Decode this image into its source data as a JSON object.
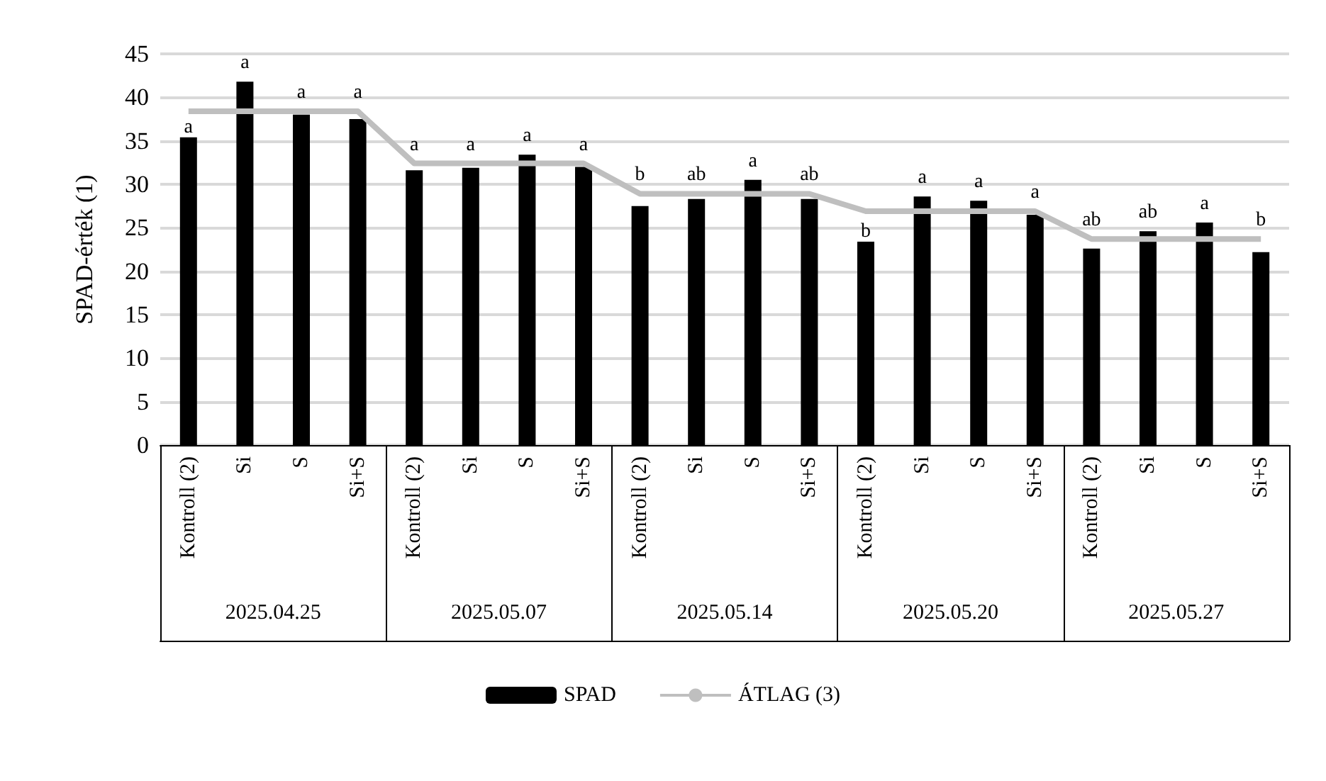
{
  "chart_data": {
    "type": "bar",
    "ylabel": "SPAD-érték (1)",
    "categories": [
      "Kontroll (2)",
      "Si",
      "S",
      "Si+S",
      "Kontroll (2)",
      "Si",
      "S",
      "Si+S",
      "Kontroll (2)",
      "Si",
      "S",
      "Si+S",
      "Kontroll (2)",
      "Si",
      "S",
      "Si+S",
      "Kontroll (2)",
      "Si",
      "S",
      "Si+S"
    ],
    "annotations": [
      "2025.04.25",
      "2025.05.07",
      "2025.05.14",
      "2025.05.20",
      "2025.05.27"
    ],
    "series": [
      {
        "name": "SPAD",
        "type": "bar",
        "color": "#000000",
        "values": [
          35.4,
          41.8,
          38,
          37.5,
          31.6,
          31.9,
          33.4,
          32,
          27.5,
          28.3,
          30.5,
          28.3,
          23.4,
          28.6,
          28.1,
          26.5,
          22.6,
          24.6,
          25.6,
          22.2
        ],
        "value_labels": [
          "a",
          "a",
          "a",
          "a",
          "a",
          "a",
          "a",
          "a",
          "b",
          "ab",
          "a",
          "ab",
          "b",
          "a",
          "a",
          "a",
          "ab",
          "ab",
          "a",
          "b"
        ]
      },
      {
        "name": "ÁTLAG (3)",
        "type": "line",
        "color": "#bfbfbf",
        "values": [
          38.4,
          38.4,
          38.4,
          38.4,
          32.4,
          32.4,
          32.4,
          32.4,
          28.9,
          28.9,
          28.9,
          28.9,
          26.9,
          26.9,
          26.9,
          26.9,
          23.7,
          23.7,
          23.7,
          23.7
        ]
      }
    ],
    "ylim": [
      0,
      45
    ],
    "yticks": [
      0,
      5,
      10,
      15,
      20,
      25,
      30,
      35,
      40,
      45
    ],
    "grid": "y",
    "legend": "bottom",
    "marker": "none"
  }
}
